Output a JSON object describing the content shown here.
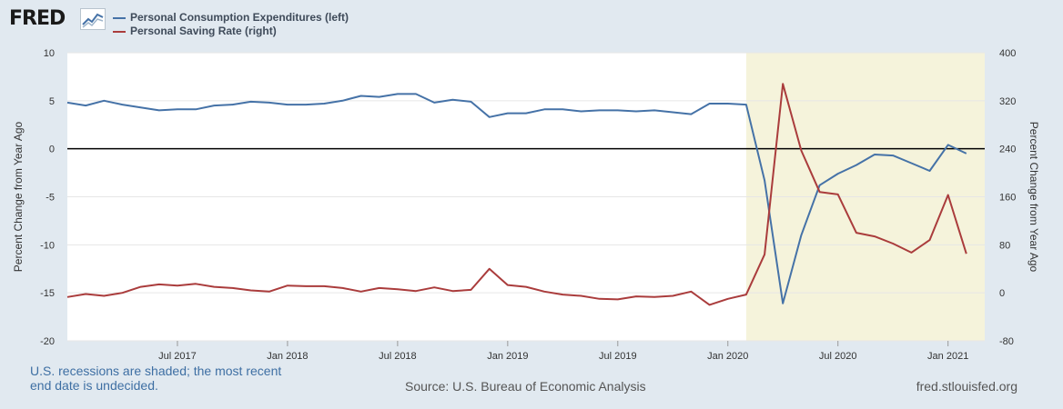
{
  "header": {
    "logo_text": "FRED",
    "logo_icon": "chart-line-icon"
  },
  "footer": {
    "recession_note": "U.S. recessions are shaded; the most recent end date is undecided.",
    "source": "Source: U.S. Bureau of Economic Analysis",
    "site": "fred.stlouisfed.org"
  },
  "colors": {
    "pce": "#4572a7",
    "saving": "#aa3c3c",
    "recession": "#f5f3db",
    "background": "#e1e9f0"
  },
  "chart_data": {
    "type": "line",
    "ylabel_left": "Percent Change from Year Ago",
    "ylabel_right": "Percent Change from Year Ago",
    "ylim_left": [
      -20,
      10
    ],
    "ylim_right": [
      -80,
      400
    ],
    "yticks_left": [
      10,
      5,
      0,
      -5,
      -10,
      -15,
      -20
    ],
    "yticks_right": [
      400,
      320,
      240,
      160,
      80,
      0,
      -80
    ],
    "xlim": [
      "2017-01",
      "2021-03"
    ],
    "xticks": [
      {
        "label": "Jul 2017",
        "date": "2017-07"
      },
      {
        "label": "Jan 2018",
        "date": "2018-01"
      },
      {
        "label": "Jul 2018",
        "date": "2018-07"
      },
      {
        "label": "Jan 2019",
        "date": "2019-01"
      },
      {
        "label": "Jul 2019",
        "date": "2019-07"
      },
      {
        "label": "Jan 2020",
        "date": "2020-01"
      },
      {
        "label": "Jul 2020",
        "date": "2020-07"
      },
      {
        "label": "Jan 2021",
        "date": "2021-01"
      }
    ],
    "recession": {
      "start": "2020-02",
      "end": "2021-03"
    },
    "grid": true,
    "legend_position": "top-left",
    "x": [
      "2017-01",
      "2017-02",
      "2017-03",
      "2017-04",
      "2017-05",
      "2017-06",
      "2017-07",
      "2017-08",
      "2017-09",
      "2017-10",
      "2017-11",
      "2017-12",
      "2018-01",
      "2018-02",
      "2018-03",
      "2018-04",
      "2018-05",
      "2018-06",
      "2018-07",
      "2018-08",
      "2018-09",
      "2018-10",
      "2018-11",
      "2018-12",
      "2019-01",
      "2019-02",
      "2019-03",
      "2019-04",
      "2019-05",
      "2019-06",
      "2019-07",
      "2019-08",
      "2019-09",
      "2019-10",
      "2019-11",
      "2019-12",
      "2020-01",
      "2020-02",
      "2020-03",
      "2020-04",
      "2020-05",
      "2020-06",
      "2020-07",
      "2020-08",
      "2020-09",
      "2020-10",
      "2020-11",
      "2020-12",
      "2021-01",
      "2021-02"
    ],
    "series": [
      {
        "name": "Personal Consumption Expenditures (left)",
        "axis": "left",
        "values": [
          4.8,
          4.5,
          5.0,
          4.6,
          4.3,
          4.0,
          4.1,
          4.1,
          4.5,
          4.6,
          4.9,
          4.8,
          4.6,
          4.6,
          4.7,
          5.0,
          5.5,
          5.4,
          5.7,
          5.7,
          4.8,
          5.1,
          4.9,
          3.3,
          3.7,
          3.7,
          4.1,
          4.1,
          3.9,
          4.0,
          4.0,
          3.9,
          4.0,
          3.8,
          3.6,
          4.7,
          4.7,
          4.6,
          -3.3,
          -16.1,
          -9.0,
          -3.8,
          -2.6,
          -1.7,
          -0.6,
          -0.7,
          -1.5,
          -2.3,
          0.4,
          -0.5
        ]
      },
      {
        "name": "Personal Saving Rate (right)",
        "axis": "right",
        "values": [
          -7,
          -2,
          -5,
          0,
          10,
          14,
          12,
          15,
          10,
          8,
          4,
          2,
          12,
          11,
          11,
          8,
          2,
          8,
          6,
          3,
          9,
          3,
          5,
          40,
          13,
          10,
          2,
          -3,
          -5,
          -10,
          -11,
          -6,
          -7,
          -5,
          2,
          -20,
          -10,
          -3,
          64,
          348,
          237,
          168,
          164,
          100,
          94,
          82,
          67,
          88,
          163,
          65
        ]
      }
    ]
  }
}
